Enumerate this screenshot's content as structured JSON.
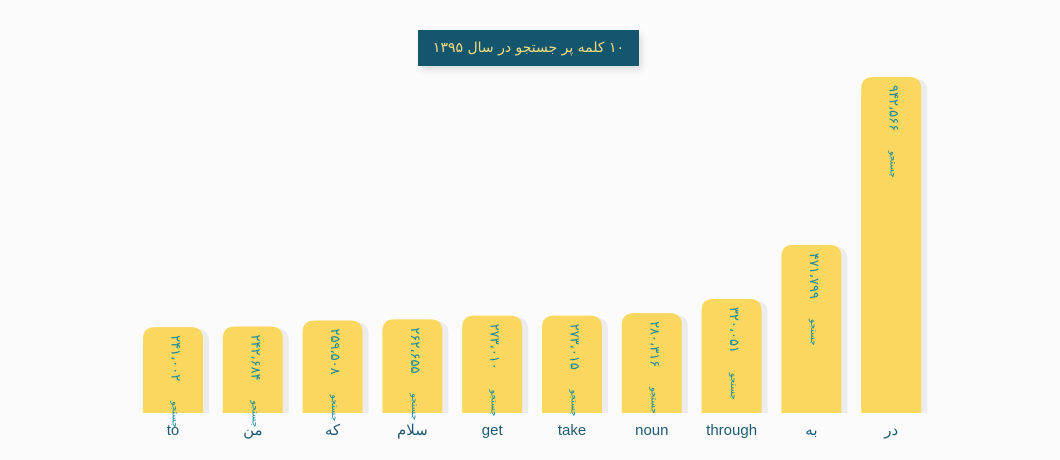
{
  "chart_data": {
    "type": "bar",
    "title": "۱۰ کلمه پر جستجو در سال ۱۳۹۵",
    "categories": [
      "to",
      "من",
      "که",
      "سلام",
      "get",
      "take",
      "noun",
      "through",
      "به",
      "در"
    ],
    "values": [
      241002,
      242684,
      259508,
      262655,
      273010,
      273015,
      280316,
      320051,
      471799,
      942566
    ],
    "value_labels": [
      "۲۴۱،۰۰۲",
      "۲۴۲،۶۸۴",
      "۲۵۹،۵۰۸",
      "۲۶۲،۶۵۵",
      "۲۷۳،۰۱۰",
      "۲۷۳،۰۱۵",
      "۲۸۰،۳۱۶",
      "۳۲۰،۰۵۱",
      "۴۷۱،۷۹۹",
      "۹۴۲،۵۶۶"
    ],
    "unit_label": "جستجو",
    "xlabel": "",
    "ylabel": "",
    "ylim": [
      0,
      942566
    ],
    "grid": false,
    "legend": "none"
  },
  "colors": {
    "bar": "#fad75f",
    "value_text": "#1a8a9a",
    "title_bg": "#14566e",
    "title_text": "#f4dc7e",
    "category_text": "#1d5a73"
  }
}
